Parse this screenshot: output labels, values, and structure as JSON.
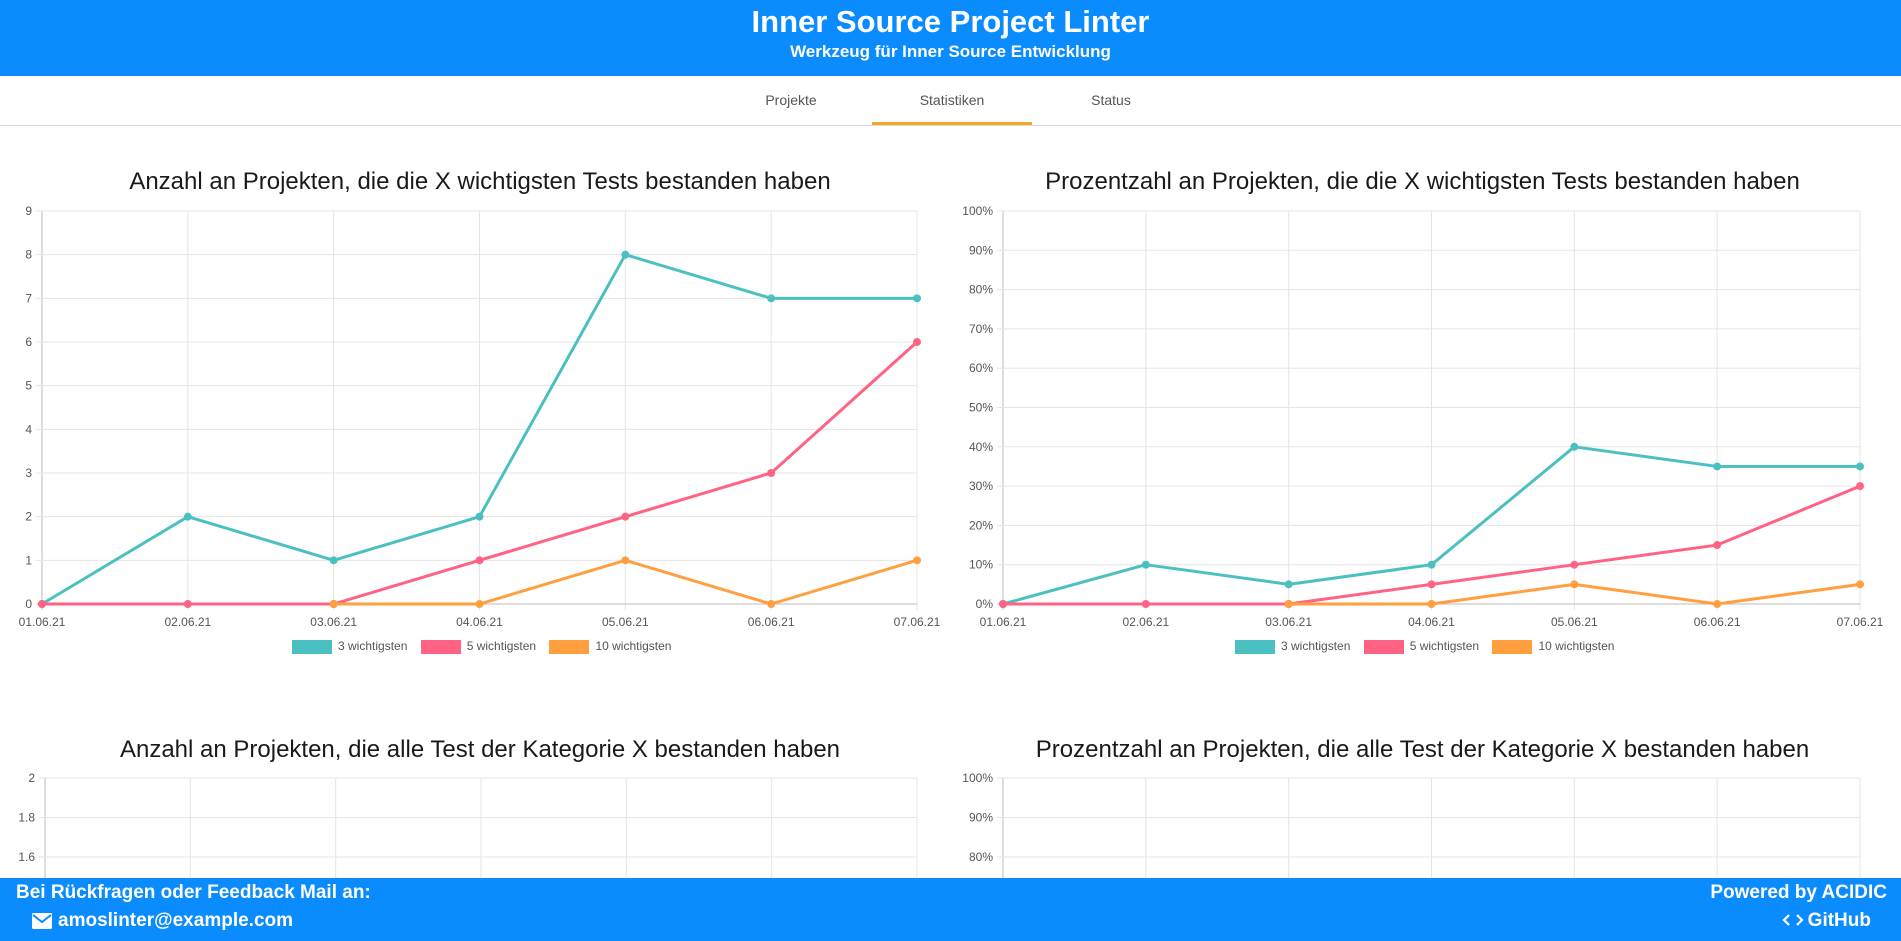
{
  "header": {
    "title": "Inner Source Project Linter",
    "subtitle": "Werkzeug für Inner Source Entwicklung"
  },
  "nav": {
    "tabs": [
      {
        "label": "Projekte",
        "active": false
      },
      {
        "label": "Statistiken",
        "active": true
      },
      {
        "label": "Status",
        "active": false
      }
    ]
  },
  "colors": {
    "header": "#0a8cff",
    "series_3": "#4bc0c0",
    "series_5": "#ff6384",
    "series_10": "#ff9f40",
    "active_tab": "#f5a623"
  },
  "chart_data": [
    {
      "type": "line",
      "title": "Anzahl an Projekten, die die X wichtigsten Tests bestanden haben",
      "categories": [
        "01.06.21",
        "02.06.21",
        "03.06.21",
        "04.06.21",
        "05.06.21",
        "06.06.21",
        "07.06.21"
      ],
      "ylim": [
        0,
        9
      ],
      "yticks": [
        0,
        1,
        2,
        3,
        4,
        5,
        6,
        7,
        8,
        9
      ],
      "yticks_labels": [
        "0",
        "1",
        "2",
        "3",
        "4",
        "5",
        "6",
        "7",
        "8",
        "9"
      ],
      "grid": true,
      "legend": "bottom",
      "series": [
        {
          "name": "3 wichtigsten",
          "color": "#4bc0c0",
          "values": [
            0,
            2,
            1,
            2,
            8,
            7,
            7
          ]
        },
        {
          "name": "5 wichtigsten",
          "color": "#ff6384",
          "values": [
            0,
            0,
            0,
            1,
            2,
            3,
            6
          ]
        },
        {
          "name": "10 wichtigsten",
          "color": "#ff9f40",
          "values": [
            null,
            null,
            0,
            0,
            1,
            0,
            1
          ]
        }
      ]
    },
    {
      "type": "line",
      "title": "Prozentzahl an Projekten, die die X wichtigsten Tests bestanden haben",
      "categories": [
        "01.06.21",
        "02.06.21",
        "03.06.21",
        "04.06.21",
        "05.06.21",
        "06.06.21",
        "07.06.21"
      ],
      "ylim": [
        0,
        100
      ],
      "yticks": [
        0,
        10,
        20,
        30,
        40,
        50,
        60,
        70,
        80,
        90,
        100
      ],
      "yticks_labels": [
        "0%",
        "10%",
        "20%",
        "30%",
        "40%",
        "50%",
        "60%",
        "70%",
        "80%",
        "90%",
        "100%"
      ],
      "grid": true,
      "legend": "bottom",
      "series": [
        {
          "name": "3 wichtigsten",
          "color": "#4bc0c0",
          "values": [
            0,
            10,
            5,
            10,
            40,
            35,
            35
          ]
        },
        {
          "name": "5 wichtigsten",
          "color": "#ff6384",
          "values": [
            0,
            0,
            0,
            5,
            10,
            15,
            30
          ]
        },
        {
          "name": "10 wichtigsten",
          "color": "#ff9f40",
          "values": [
            null,
            null,
            0,
            0,
            5,
            0,
            5
          ]
        }
      ]
    },
    {
      "type": "line",
      "title": "Anzahl an Projekten, die alle Test der Kategorie X bestanden haben",
      "categories": [],
      "ylim": [
        0,
        2
      ],
      "yticks": [
        1.6,
        1.8,
        2
      ],
      "yticks_labels": [
        "1.6",
        "1.8",
        "2"
      ],
      "grid": true,
      "series": []
    },
    {
      "type": "line",
      "title": "Prozentzahl an Projekten, die alle Test der Kategorie X bestanden haben",
      "categories": [],
      "ylim": [
        0,
        100
      ],
      "yticks": [
        80,
        90,
        100
      ],
      "yticks_labels": [
        "80%",
        "90%",
        "100%"
      ],
      "grid": true,
      "series": []
    }
  ],
  "footer": {
    "feedback_text": "Bei Rückfragen oder Feedback Mail an:",
    "email": "amoslinter@example.com",
    "powered_by": "Powered by ACIDIC",
    "github_label": "GitHub",
    "mail_icon": "mail-icon",
    "code_icon": "code-icon"
  }
}
